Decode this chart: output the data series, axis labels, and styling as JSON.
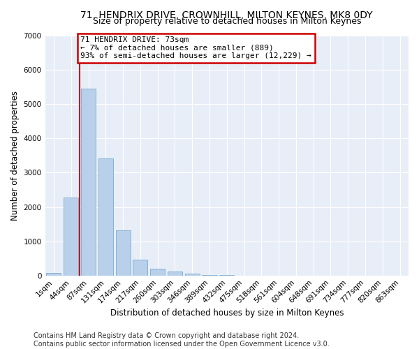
{
  "title": "71, HENDRIX DRIVE, CROWNHILL, MILTON KEYNES, MK8 0DY",
  "subtitle": "Size of property relative to detached houses in Milton Keynes",
  "xlabel": "Distribution of detached houses by size in Milton Keynes",
  "ylabel": "Number of detached properties",
  "categories": [
    "1sqm",
    "44sqm",
    "87sqm",
    "131sqm",
    "174sqm",
    "217sqm",
    "260sqm",
    "303sqm",
    "346sqm",
    "389sqm",
    "432sqm",
    "475sqm",
    "518sqm",
    "561sqm",
    "604sqm",
    "648sqm",
    "691sqm",
    "734sqm",
    "777sqm",
    "820sqm",
    "863sqm"
  ],
  "bar_heights": [
    70,
    2270,
    5450,
    3420,
    1310,
    470,
    200,
    110,
    65,
    15,
    5,
    0,
    0,
    0,
    0,
    0,
    0,
    0,
    0,
    0,
    0
  ],
  "bar_color": "#b8d0ea",
  "bar_edge_color": "#7aaacf",
  "figure_bg": "#ffffff",
  "axes_bg": "#e8eef8",
  "grid_color": "#ffffff",
  "vline_color": "#cc0000",
  "annotation_text": "71 HENDRIX DRIVE: 73sqm\n← 7% of detached houses are smaller (889)\n93% of semi-detached houses are larger (12,229) →",
  "annotation_box_color": "#ffffff",
  "annotation_box_edge": "#cc0000",
  "ylim": [
    0,
    7000
  ],
  "yticks": [
    0,
    1000,
    2000,
    3000,
    4000,
    5000,
    6000,
    7000
  ],
  "title_fontsize": 10,
  "subtitle_fontsize": 9,
  "xlabel_fontsize": 8.5,
  "ylabel_fontsize": 8.5,
  "tick_fontsize": 7.5,
  "annot_fontsize": 8,
  "footer": "Contains HM Land Registry data © Crown copyright and database right 2024.\nContains public sector information licensed under the Open Government Licence v3.0.",
  "footer_fontsize": 7
}
